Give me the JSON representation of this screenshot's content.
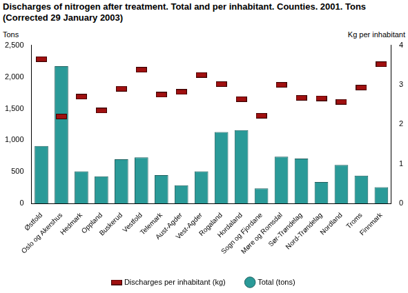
{
  "chart_data": {
    "type": "bar",
    "title": [
      "Discharges of nitrogen after treatment. Total and per inhabitant. Counties. 2001. Tons",
      "(Corrected 29 January 2003)"
    ],
    "y_label": "Tons",
    "y2_label": "Kg per inhabitant",
    "categories": [
      "Østfold",
      "Oslo og Akershus",
      "Hedmark",
      "Oppland",
      "Buskerud",
      "Vestfold",
      "Telemark",
      "Aust-Agder",
      "Vest-Agder",
      "Rogaland",
      "Hordaland",
      "Sogn og Fjordane",
      "Møre og Romsdal",
      "Sør-Trøndelag",
      "Nord-Trøndelag",
      "Nordland",
      "Troms",
      "Finnmark"
    ],
    "series": [
      {
        "name": "Total (tons)",
        "type": "bar",
        "color": "#2a9a98",
        "values": [
          910,
          2170,
          510,
          430,
          700,
          730,
          450,
          290,
          510,
          1130,
          1160,
          240,
          740,
          710,
          340,
          610,
          440,
          260
        ]
      },
      {
        "name": "Discharges per inhabitant (kg)",
        "type": "scatter",
        "axis": "y2",
        "marker": "rect",
        "color": "#a01010",
        "values": [
          3.65,
          2.2,
          2.7,
          2.35,
          2.9,
          3.38,
          2.75,
          2.82,
          3.25,
          3.02,
          2.64,
          2.22,
          3.0,
          2.67,
          2.66,
          2.57,
          2.93,
          3.52
        ]
      }
    ],
    "ylim": [
      0,
      2500
    ],
    "yticks": [
      0,
      500,
      1000,
      1500,
      2000,
      2500
    ],
    "y2lim": [
      0,
      4
    ],
    "y2ticks": [
      0,
      1,
      2,
      3,
      4
    ],
    "grid": false,
    "legend": "bottom"
  }
}
